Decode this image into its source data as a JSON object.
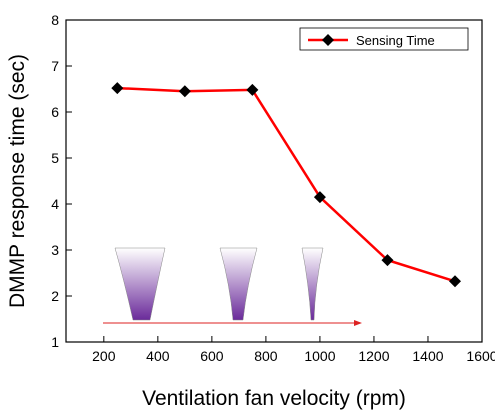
{
  "chart_data": {
    "type": "line",
    "x_label": "Ventilation fan velocity (rpm)",
    "y_label": "DMMP response time (sec)",
    "x": [
      250,
      500,
      750,
      1000,
      1250,
      1500
    ],
    "series": [
      {
        "name": "Sensing Time",
        "color": "#ff0000",
        "values": [
          6.52,
          6.45,
          6.48,
          4.15,
          2.78,
          2.32
        ]
      }
    ],
    "xlim": [
      60,
      1600
    ],
    "xticks": [
      200,
      400,
      600,
      800,
      1000,
      1200,
      1400,
      1600
    ],
    "ylim": [
      1,
      8
    ],
    "yticks": [
      1,
      2,
      3,
      4,
      5,
      6,
      7,
      8
    ],
    "legend": "upper right",
    "grid": false
  }
}
